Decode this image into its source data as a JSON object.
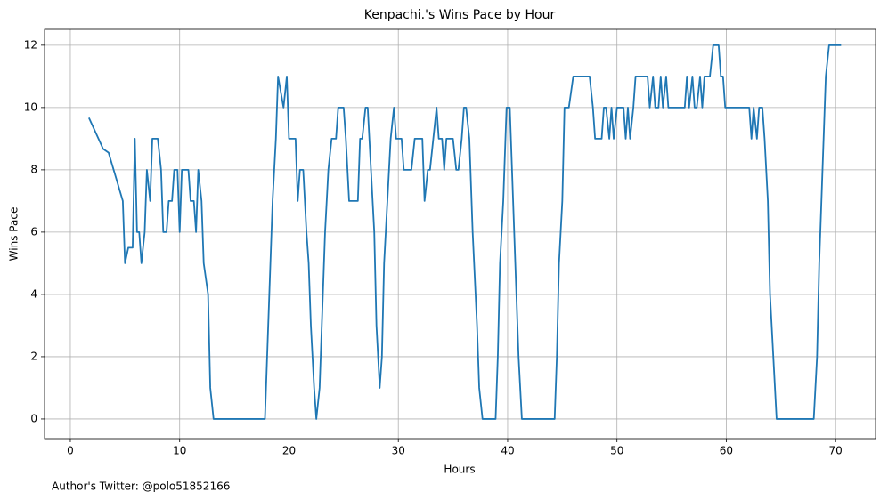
{
  "chart_data": {
    "type": "line",
    "title": "Kenpachi.'s Wins Pace by Hour",
    "x_label": "Hours",
    "y_label": "Wins Pace",
    "footer": "Author's Twitter: @polo51852166",
    "x": [
      1.7,
      3.0,
      3.5,
      4.8,
      5.0,
      5.3,
      5.7,
      5.9,
      6.1,
      6.3,
      6.5,
      6.8,
      7.0,
      7.3,
      7.5,
      8.0,
      8.3,
      8.5,
      8.8,
      9.0,
      9.3,
      9.5,
      9.8,
      10.0,
      10.2,
      10.8,
      11.0,
      11.3,
      11.5,
      11.7,
      12.0,
      12.2,
      12.6,
      12.8,
      13.1,
      17.8,
      17.9,
      18.2,
      18.5,
      18.8,
      19.0,
      19.5,
      19.8,
      20.0,
      20.6,
      20.8,
      21.0,
      21.3,
      21.6,
      21.8,
      22.0,
      22.3,
      22.5,
      22.8,
      23.0,
      23.3,
      23.6,
      23.9,
      24.3,
      24.5,
      25.0,
      25.2,
      25.5,
      26.3,
      26.5,
      26.7,
      27.0,
      27.2,
      27.5,
      27.8,
      28.0,
      28.3,
      28.5,
      28.7,
      29.0,
      29.3,
      29.6,
      29.8,
      30.3,
      30.5,
      31.2,
      31.5,
      32.2,
      32.4,
      32.7,
      32.9,
      33.2,
      33.5,
      33.7,
      34.0,
      34.2,
      34.4,
      35.0,
      35.3,
      35.5,
      35.8,
      36.0,
      36.2,
      36.5,
      36.8,
      37.2,
      37.4,
      37.7,
      38.9,
      39.1,
      39.3,
      39.6,
      39.9,
      40.2,
      40.5,
      40.7,
      41.0,
      41.3,
      44.3,
      44.5,
      44.7,
      45.0,
      45.2,
      45.6,
      46.0,
      47.5,
      47.8,
      48.0,
      48.6,
      48.8,
      49.0,
      49.3,
      49.5,
      49.7,
      50.0,
      50.6,
      50.8,
      51.0,
      51.2,
      51.5,
      51.7,
      52.8,
      53.0,
      53.3,
      53.5,
      53.8,
      54.0,
      54.2,
      54.5,
      54.7,
      56.2,
      56.4,
      56.6,
      56.9,
      57.1,
      57.3,
      57.6,
      57.8,
      58.0,
      58.5,
      58.8,
      59.3,
      59.5,
      59.7,
      59.9,
      62.1,
      62.3,
      62.5,
      62.8,
      63.0,
      63.3,
      63.5,
      63.8,
      64.0,
      64.3,
      64.6,
      68.0,
      68.3,
      68.5,
      68.8,
      69.1,
      69.4,
      70.5
    ],
    "series": [
      {
        "color": "#1f77b4",
        "values": [
          9.67,
          8.67,
          8.55,
          7,
          5,
          5.5,
          5.5,
          9,
          6,
          6,
          5,
          6,
          8,
          7,
          9,
          9,
          8,
          6,
          6,
          7,
          7,
          8,
          8,
          6,
          8,
          8,
          7,
          7,
          6,
          8,
          7,
          5,
          4,
          1,
          0,
          0,
          1,
          4,
          7,
          9,
          11,
          10,
          11,
          9,
          9,
          7,
          8,
          8,
          6,
          5,
          3,
          1,
          0,
          1,
          3,
          6,
          8,
          9,
          9,
          10,
          10,
          9,
          7,
          7,
          9,
          9,
          10,
          10,
          8,
          6,
          3,
          1,
          2,
          5,
          7,
          9,
          10,
          9,
          9,
          8,
          8,
          9,
          9,
          7,
          8,
          8,
          9,
          10,
          9,
          9,
          8,
          9,
          9,
          8,
          8,
          9,
          10,
          10,
          9,
          6,
          3,
          1,
          0,
          0,
          2,
          5,
          7,
          10,
          10,
          7,
          5,
          2,
          0,
          0,
          2,
          5,
          7,
          10,
          10,
          11,
          11,
          10,
          9,
          9,
          10,
          10,
          9,
          10,
          9,
          10,
          10,
          9,
          10,
          9,
          10,
          11,
          11,
          10,
          11,
          10,
          10,
          11,
          10,
          11,
          10,
          10,
          11,
          10,
          11,
          10,
          10,
          11,
          10,
          11,
          11,
          12,
          12,
          11,
          11,
          10,
          10,
          9,
          10,
          9,
          10,
          10,
          9,
          7,
          4,
          2,
          0,
          0,
          2,
          5,
          8,
          11,
          12,
          12
        ]
      }
    ],
    "xlim": [
      -2.36,
      73.65
    ],
    "ylim": [
      -0.63,
      12.51
    ],
    "xticks": [
      0,
      10,
      20,
      30,
      40,
      50,
      60,
      70
    ],
    "yticks": [
      0,
      2,
      4,
      6,
      8,
      10,
      12
    ],
    "grid": true
  }
}
